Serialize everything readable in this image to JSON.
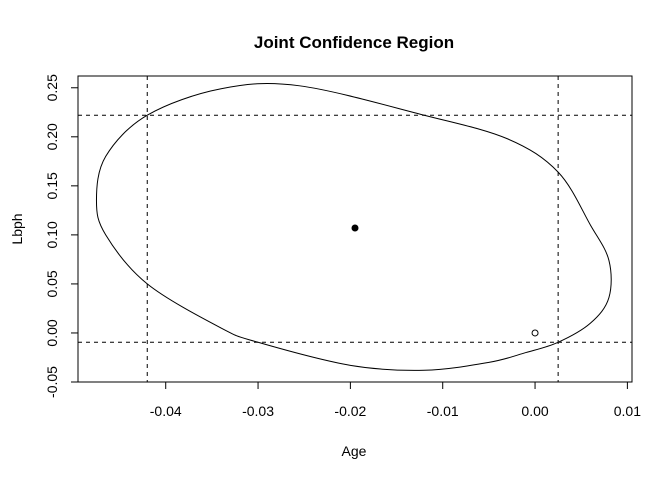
{
  "chart_data": {
    "type": "scatter",
    "title": "Joint Confidence Region",
    "xlabel": "Age",
    "ylabel": "Lbph",
    "xlim": [
      -0.0495,
      0.0105
    ],
    "ylim": [
      -0.05,
      0.262
    ],
    "x_ticks": [
      -0.04,
      -0.03,
      -0.02,
      -0.01,
      0.0,
      0.01
    ],
    "x_tick_labels": [
      "-0.04",
      "-0.03",
      "-0.02",
      "-0.01",
      "0.00",
      "0.01"
    ],
    "y_ticks": [
      -0.05,
      0.0,
      0.05,
      0.1,
      0.15,
      0.2,
      0.25
    ],
    "y_tick_labels": [
      "-0.05",
      "0.00",
      "0.05",
      "0.10",
      "0.15",
      "0.20",
      "0.25"
    ],
    "estimate_point": {
      "x": -0.0195,
      "y": 0.107,
      "filled": true
    },
    "null_point": {
      "x": 0.0,
      "y": 0.0,
      "filled": false
    },
    "ellipse": [
      [
        0.0025,
        -0.0095
      ],
      [
        0.006,
        0.01
      ],
      [
        0.008,
        0.036
      ],
      [
        0.008,
        0.074
      ],
      [
        0.006,
        0.11
      ],
      [
        0.0025,
        0.164
      ],
      [
        -0.003,
        0.198
      ],
      [
        -0.012,
        0.222
      ],
      [
        -0.0255,
        0.252
      ],
      [
        -0.034,
        0.249
      ],
      [
        -0.042,
        0.222
      ],
      [
        -0.0465,
        0.18
      ],
      [
        -0.0475,
        0.135
      ],
      [
        -0.0465,
        0.1
      ],
      [
        -0.042,
        0.05
      ],
      [
        -0.034,
        0.005
      ],
      [
        -0.03,
        -0.0095
      ],
      [
        -0.02,
        -0.033
      ],
      [
        -0.012,
        -0.038
      ],
      [
        -0.005,
        -0.03
      ],
      [
        -0.001,
        -0.02
      ],
      [
        0.0025,
        -0.0095
      ]
    ],
    "reference_lines": {
      "vertical": [
        -0.042,
        0.0025
      ],
      "horizontal": [
        -0.0095,
        0.222
      ]
    },
    "grid": false,
    "legend": "none"
  }
}
